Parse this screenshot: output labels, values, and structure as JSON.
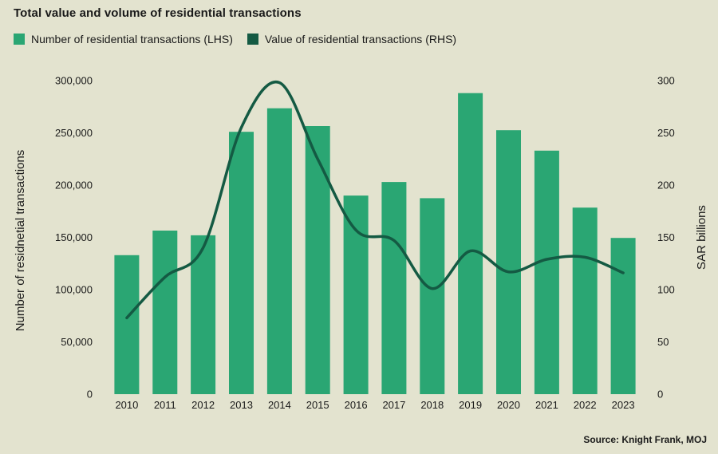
{
  "chart_data": {
    "type": "bar+line",
    "title": "Total value and volume of residential transactions",
    "categories": [
      "2010",
      "2011",
      "2012",
      "2013",
      "2014",
      "2015",
      "2016",
      "2017",
      "2018",
      "2019",
      "2020",
      "2021",
      "2022",
      "2023"
    ],
    "series": [
      {
        "name": "Number of residential transactions (LHS)",
        "type": "bar",
        "axis": "left",
        "color": "#2aa673",
        "values": [
          133000,
          156500,
          152000,
          251000,
          273500,
          256500,
          190000,
          203000,
          187500,
          288000,
          252500,
          233000,
          178500,
          149500
        ]
      },
      {
        "name": "Value of residential transactions (RHS)",
        "type": "line",
        "axis": "right",
        "color": "#145a43",
        "values": [
          73,
          112,
          140,
          255,
          298,
          225,
          157,
          147,
          101,
          137,
          117,
          129,
          131,
          116
        ]
      }
    ],
    "ylabel_left": "Number of residnetial transactions",
    "ylabel_right": "SAR billions",
    "ylim_left": [
      0,
      300000
    ],
    "ylim_right": [
      0,
      300
    ],
    "yticks_left": [
      "0",
      "50,000",
      "100,000",
      "150,000",
      "200,000",
      "250,000",
      "300,000"
    ],
    "yticks_right": [
      "0",
      "50",
      "100",
      "150",
      "200",
      "250",
      "300"
    ],
    "grid": false,
    "legend_position": "top-left",
    "source": "Source: Knight Frank, MOJ"
  }
}
